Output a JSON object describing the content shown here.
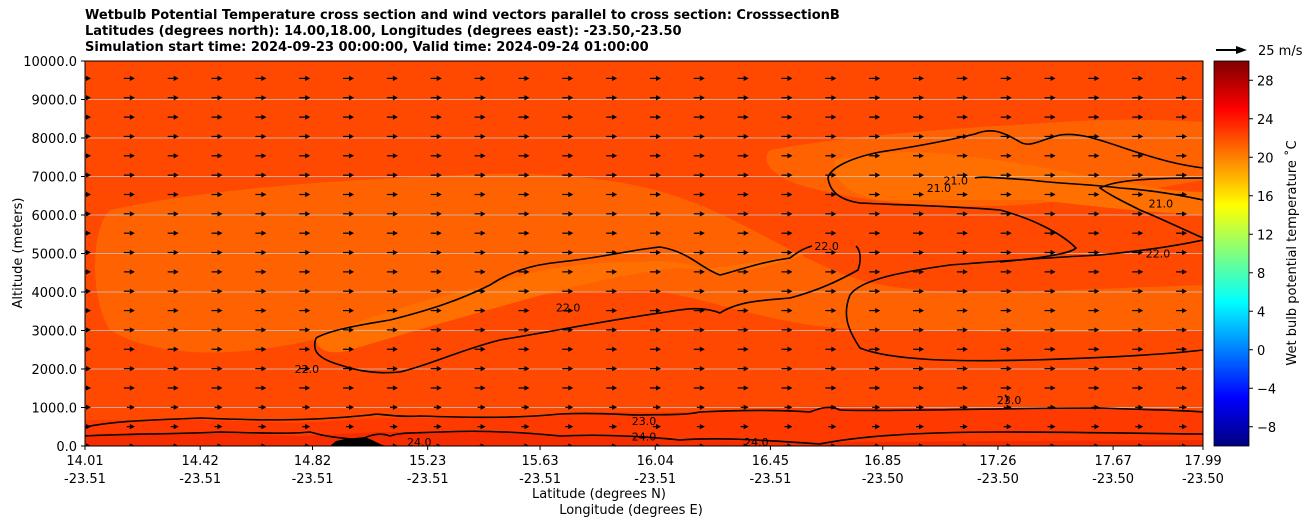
{
  "chart_data": {
    "type": "heatmap",
    "title_lines": [
      "Wetbulb Potential Temperature cross section and wind vectors parallel to cross section: CrosssectionB",
      "Latitudes (degrees north): 14.00,18.00, Longitudes (degrees east): -23.50,-23.50",
      "Simulation start time: 2024-09-23 00:00:00, Valid time: 2024-09-24 01:00:00"
    ],
    "ylabel": "Altitude (meters)",
    "xlabel": "Latitude (degrees N)",
    "xlabel2": "Longitude (degrees E)",
    "ylim": [
      0,
      10000
    ],
    "y_ticks": [
      "0.0",
      "1000.0",
      "2000.0",
      "3000.0",
      "4000.0",
      "5000.0",
      "6000.0",
      "7000.0",
      "8000.0",
      "9000.0",
      "10000.0"
    ],
    "y_tick_values": [
      0,
      1000,
      2000,
      3000,
      4000,
      5000,
      6000,
      7000,
      8000,
      9000,
      10000
    ],
    "x_ticks_lat": [
      "14.01",
      "14.42",
      "14.82",
      "15.23",
      "15.63",
      "16.04",
      "16.45",
      "16.85",
      "17.26",
      "17.67",
      "17.99"
    ],
    "x_ticks_lon": [
      "-23.51",
      "-23.51",
      "-23.51",
      "-23.51",
      "-23.51",
      "-23.51",
      "-23.51",
      "-23.50",
      "-23.50",
      "-23.50",
      "-23.50"
    ],
    "x_tick_values": [
      14.01,
      14.42,
      14.82,
      15.23,
      15.63,
      16.04,
      16.45,
      16.85,
      17.26,
      17.67,
      17.99
    ],
    "xlim": [
      14.01,
      17.99
    ],
    "grid": "horizontal",
    "colorbar": {
      "label": "Wet bulb potential temperature ˚C",
      "ticks": [
        "−8",
        "−4",
        "0",
        "4",
        "8",
        "12",
        "16",
        "20",
        "24",
        "28"
      ],
      "tick_values": [
        -8,
        -4,
        0,
        4,
        8,
        12,
        16,
        20,
        24,
        28
      ],
      "range": [
        -10,
        30
      ],
      "colormap": "jet"
    },
    "quiver_key": "25 m/s",
    "contour_labels": [
      {
        "text": "22.0",
        "lat": 14.8,
        "alt": 2000
      },
      {
        "text": "22.0",
        "lat": 15.73,
        "alt": 3600
      },
      {
        "text": "22.0",
        "lat": 16.65,
        "alt": 5200
      },
      {
        "text": "21.0",
        "lat": 17.05,
        "alt": 6700
      },
      {
        "text": "21.0",
        "lat": 17.11,
        "alt": 6900
      },
      {
        "text": "21.0",
        "lat": 17.84,
        "alt": 6300
      },
      {
        "text": "22.0",
        "lat": 17.83,
        "alt": 5000
      },
      {
        "text": "23.0",
        "lat": 16.0,
        "alt": 650
      },
      {
        "text": "24.0",
        "lat": 16.0,
        "alt": 250
      },
      {
        "text": "24.0",
        "lat": 15.2,
        "alt": 100
      },
      {
        "text": "24.0",
        "lat": 16.4,
        "alt": 100
      },
      {
        "text": "23.0",
        "lat": 17.3,
        "alt": 1200
      }
    ],
    "fill_colors": {
      "background": "#ff4800",
      "warm_lower": "#ff3a00",
      "warmest_surface": "#f52c00",
      "cooler_band": "#ff6200",
      "coolest_core": "#ff7000",
      "terrain": "#000000"
    }
  }
}
